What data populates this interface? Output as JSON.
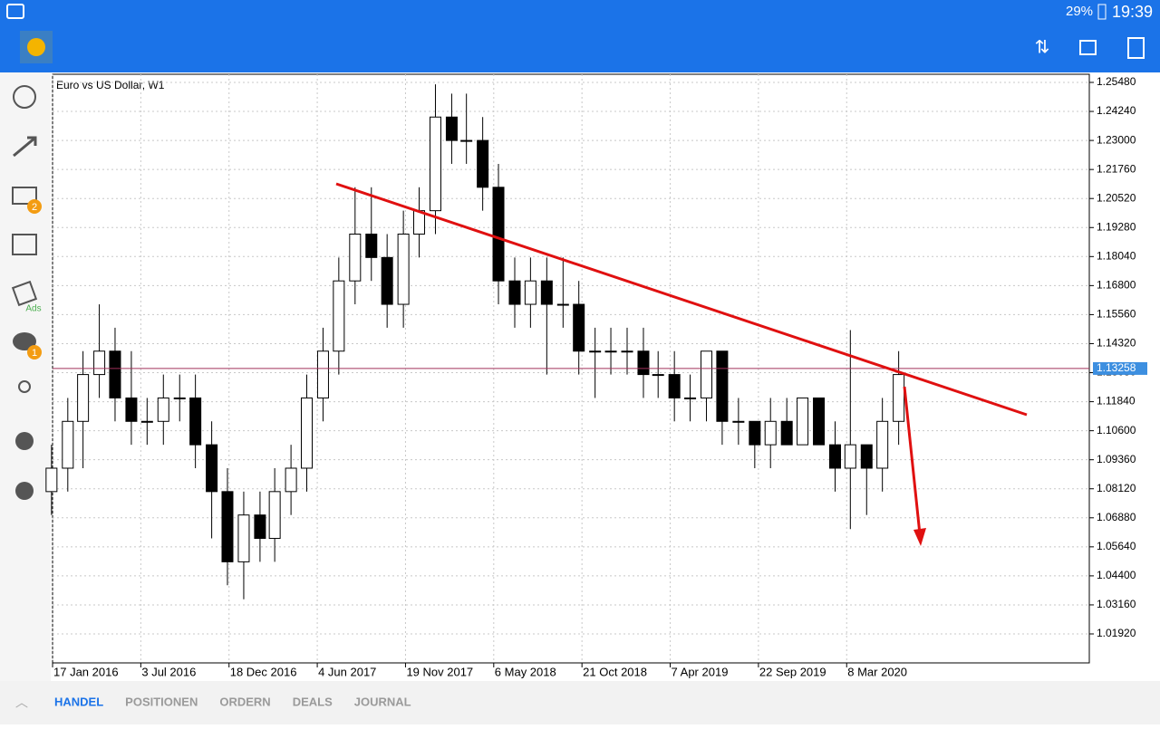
{
  "status_bar": {
    "battery": "29%",
    "time": "19:39"
  },
  "sidebar": {
    "mail_badge": "2",
    "ads_label": "Ads",
    "chat_badge": "1"
  },
  "tabs": [
    "HANDEL",
    "POSITIONEN",
    "ORDERN",
    "DEALS",
    "JOURNAL"
  ],
  "chart_data": {
    "type": "candlestick",
    "title": "Euro vs US Dollar, W1",
    "x": [
      "2016-01-15",
      "2016-02-15",
      "2016-03-15",
      "2016-04-15",
      "2016-05-15",
      "2016-06-15",
      "2016-07-15",
      "2016-08-15",
      "2016-09-15",
      "2016-10-15",
      "2016-11-15",
      "2016-12-15",
      "2017-01-15",
      "2017-02-15",
      "2017-03-15",
      "2017-04-15",
      "2017-05-15",
      "2017-06-15",
      "2017-07-15",
      "2017-08-15",
      "2017-09-15",
      "2017-10-15",
      "2017-11-15",
      "2017-12-15",
      "2018-01-15",
      "2018-02-15",
      "2018-03-15",
      "2018-04-15",
      "2018-05-15",
      "2018-06-15",
      "2018-07-15",
      "2018-08-15",
      "2018-09-15",
      "2018-10-15",
      "2018-11-15",
      "2018-12-15",
      "2019-01-15",
      "2019-02-15",
      "2019-03-15",
      "2019-04-15",
      "2019-05-15",
      "2019-06-15",
      "2019-07-15",
      "2019-08-15",
      "2019-09-15",
      "2019-10-15",
      "2019-11-15",
      "2019-12-15",
      "2020-01-15",
      "2020-02-15",
      "2020-03-15",
      "2020-04-15",
      "2020-05-15",
      "2020-06-15"
    ],
    "open": [
      1.08,
      1.09,
      1.11,
      1.13,
      1.14,
      1.12,
      1.11,
      1.11,
      1.12,
      1.12,
      1.1,
      1.08,
      1.05,
      1.07,
      1.06,
      1.08,
      1.09,
      1.12,
      1.14,
      1.17,
      1.19,
      1.18,
      1.16,
      1.19,
      1.2,
      1.24,
      1.23,
      1.23,
      1.21,
      1.17,
      1.16,
      1.17,
      1.16,
      1.16,
      1.14,
      1.14,
      1.14,
      1.14,
      1.13,
      1.13,
      1.12,
      1.12,
      1.14,
      1.11,
      1.11,
      1.1,
      1.11,
      1.1,
      1.12,
      1.1,
      1.09,
      1.1,
      1.09,
      1.11
    ],
    "high": [
      1.1,
      1.12,
      1.14,
      1.16,
      1.15,
      1.14,
      1.12,
      1.13,
      1.13,
      1.13,
      1.11,
      1.09,
      1.08,
      1.08,
      1.09,
      1.1,
      1.13,
      1.15,
      1.18,
      1.21,
      1.21,
      1.19,
      1.2,
      1.21,
      1.254,
      1.25,
      1.25,
      1.24,
      1.22,
      1.18,
      1.18,
      1.18,
      1.18,
      1.17,
      1.15,
      1.15,
      1.15,
      1.15,
      1.14,
      1.14,
      1.13,
      1.14,
      1.14,
      1.12,
      1.11,
      1.12,
      1.12,
      1.12,
      1.12,
      1.11,
      1.149,
      1.1,
      1.12,
      1.14
    ],
    "low": [
      1.07,
      1.08,
      1.09,
      1.12,
      1.11,
      1.1,
      1.1,
      1.1,
      1.11,
      1.09,
      1.06,
      1.04,
      1.034,
      1.05,
      1.05,
      1.07,
      1.08,
      1.11,
      1.13,
      1.16,
      1.17,
      1.15,
      1.15,
      1.18,
      1.19,
      1.22,
      1.22,
      1.2,
      1.16,
      1.15,
      1.15,
      1.13,
      1.15,
      1.13,
      1.12,
      1.13,
      1.13,
      1.12,
      1.12,
      1.11,
      1.11,
      1.11,
      1.1,
      1.1,
      1.09,
      1.09,
      1.1,
      1.1,
      1.1,
      1.08,
      1.064,
      1.07,
      1.08,
      1.1
    ],
    "close": [
      1.09,
      1.11,
      1.13,
      1.14,
      1.12,
      1.11,
      1.11,
      1.12,
      1.12,
      1.1,
      1.08,
      1.05,
      1.07,
      1.06,
      1.08,
      1.09,
      1.12,
      1.14,
      1.17,
      1.19,
      1.18,
      1.16,
      1.19,
      1.2,
      1.24,
      1.23,
      1.23,
      1.21,
      1.17,
      1.16,
      1.17,
      1.16,
      1.16,
      1.14,
      1.14,
      1.14,
      1.14,
      1.13,
      1.13,
      1.12,
      1.12,
      1.14,
      1.11,
      1.11,
      1.1,
      1.11,
      1.1,
      1.12,
      1.1,
      1.09,
      1.1,
      1.09,
      1.11,
      1.13
    ],
    "current_price": 1.13258,
    "xlim": [
      "2016-01-17",
      "2021-06-13"
    ],
    "xticks": [
      {
        "value": "2016-01-17",
        "label": "17 Jan 2016"
      },
      {
        "value": "2016-07-03",
        "label": "3 Jul 2016"
      },
      {
        "value": "2016-12-18",
        "label": "18 Dec 2016"
      },
      {
        "value": "2017-06-04",
        "label": "4 Jun 2017"
      },
      {
        "value": "2017-11-19",
        "label": "19 Nov 2017"
      },
      {
        "value": "2018-05-06",
        "label": "6 May 2018"
      },
      {
        "value": "2018-10-21",
        "label": "21 Oct 2018"
      },
      {
        "value": "2019-04-07",
        "label": "7 Apr 2019"
      },
      {
        "value": "2019-09-22",
        "label": "22 Sep 2019"
      },
      {
        "value": "2020-03-08",
        "label": "8 Mar 2020"
      }
    ],
    "ylim": [
      1.00682,
      1.25828
    ],
    "yticks": [
      {
        "value": 1.2548,
        "label": "1.25480"
      },
      {
        "value": 1.2424,
        "label": "1.24240"
      },
      {
        "value": 1.23,
        "label": "1.23000"
      },
      {
        "value": 1.2176,
        "label": "1.21760"
      },
      {
        "value": 1.2052,
        "label": "1.20520"
      },
      {
        "value": 1.1928,
        "label": "1.19280"
      },
      {
        "value": 1.1804,
        "label": "1.18040"
      },
      {
        "value": 1.168,
        "label": "1.16800"
      },
      {
        "value": 1.1556,
        "label": "1.15560"
      },
      {
        "value": 1.1432,
        "label": "1.14320"
      },
      {
        "value": 1.1308,
        "label": "1.13080"
      },
      {
        "value": 1.1184,
        "label": "1.11840"
      },
      {
        "value": 1.106,
        "label": "1.10600"
      },
      {
        "value": 1.0936,
        "label": "1.09360"
      },
      {
        "value": 1.0812,
        "label": "1.08120"
      },
      {
        "value": 1.0688,
        "label": "1.06880"
      },
      {
        "value": 1.0564,
        "label": "1.05640"
      },
      {
        "value": 1.044,
        "label": "1.04400"
      },
      {
        "value": 1.0316,
        "label": "1.03160"
      },
      {
        "value": 1.0192,
        "label": "1.01920"
      }
    ],
    "grid": true,
    "up_color": "#ffffff",
    "down_color": "#000000",
    "price_line_color": "#a0305a"
  }
}
